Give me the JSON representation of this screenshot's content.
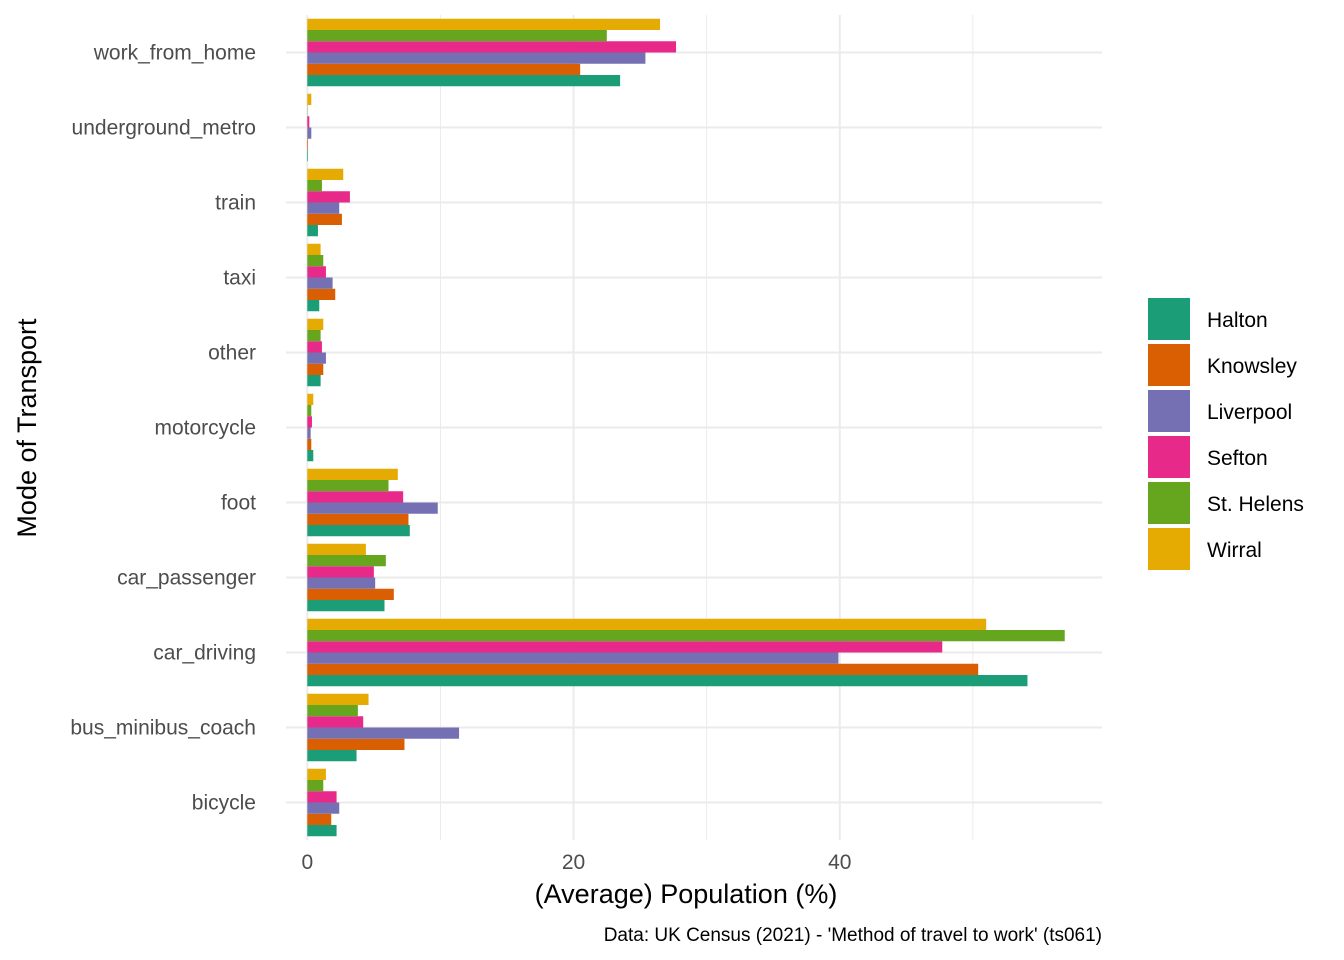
{
  "chart_data": {
    "type": "bar",
    "orientation": "horizontal",
    "title": "",
    "xlabel": "(Average) Population (%)",
    "ylabel": "Mode of Transport",
    "caption": "Data: UK Census (2021) - 'Method of travel to work' (ts061)",
    "xlim": [
      -1.6,
      59.7
    ],
    "xticks": [
      0,
      20,
      40
    ],
    "grid": true,
    "legend_placement": "right",
    "categories": [
      "work_from_home",
      "underground_metro",
      "train",
      "taxi",
      "other",
      "motorcycle",
      "foot",
      "car_passenger",
      "car_driving",
      "bus_minibus_coach",
      "bicycle"
    ],
    "series": [
      {
        "name": "Halton",
        "color": "#1B9E77",
        "values": [
          23.5,
          0.05,
          0.8,
          0.9,
          1.0,
          0.45,
          7.7,
          5.8,
          54.1,
          3.7,
          2.2
        ]
      },
      {
        "name": "Knowsley",
        "color": "#D95F02",
        "values": [
          20.5,
          0.05,
          2.6,
          2.1,
          1.2,
          0.3,
          7.6,
          6.5,
          50.4,
          7.3,
          1.8
        ]
      },
      {
        "name": "Liverpool",
        "color": "#7570B3",
        "values": [
          25.4,
          0.3,
          2.4,
          1.9,
          1.4,
          0.25,
          9.8,
          5.1,
          39.9,
          11.4,
          2.4
        ]
      },
      {
        "name": "Sefton",
        "color": "#E7298A",
        "values": [
          27.7,
          0.15,
          3.2,
          1.4,
          1.1,
          0.35,
          7.2,
          5.0,
          47.7,
          4.2,
          2.2
        ]
      },
      {
        "name": "St. Helens",
        "color": "#66A61E",
        "values": [
          22.5,
          0.02,
          1.1,
          1.2,
          1.0,
          0.3,
          6.1,
          5.9,
          56.9,
          3.8,
          1.2
        ]
      },
      {
        "name": "Wirral",
        "color": "#E6AB02",
        "values": [
          26.5,
          0.3,
          2.7,
          1.0,
          1.2,
          0.45,
          6.8,
          4.4,
          51.0,
          4.6,
          1.4
        ]
      }
    ]
  }
}
